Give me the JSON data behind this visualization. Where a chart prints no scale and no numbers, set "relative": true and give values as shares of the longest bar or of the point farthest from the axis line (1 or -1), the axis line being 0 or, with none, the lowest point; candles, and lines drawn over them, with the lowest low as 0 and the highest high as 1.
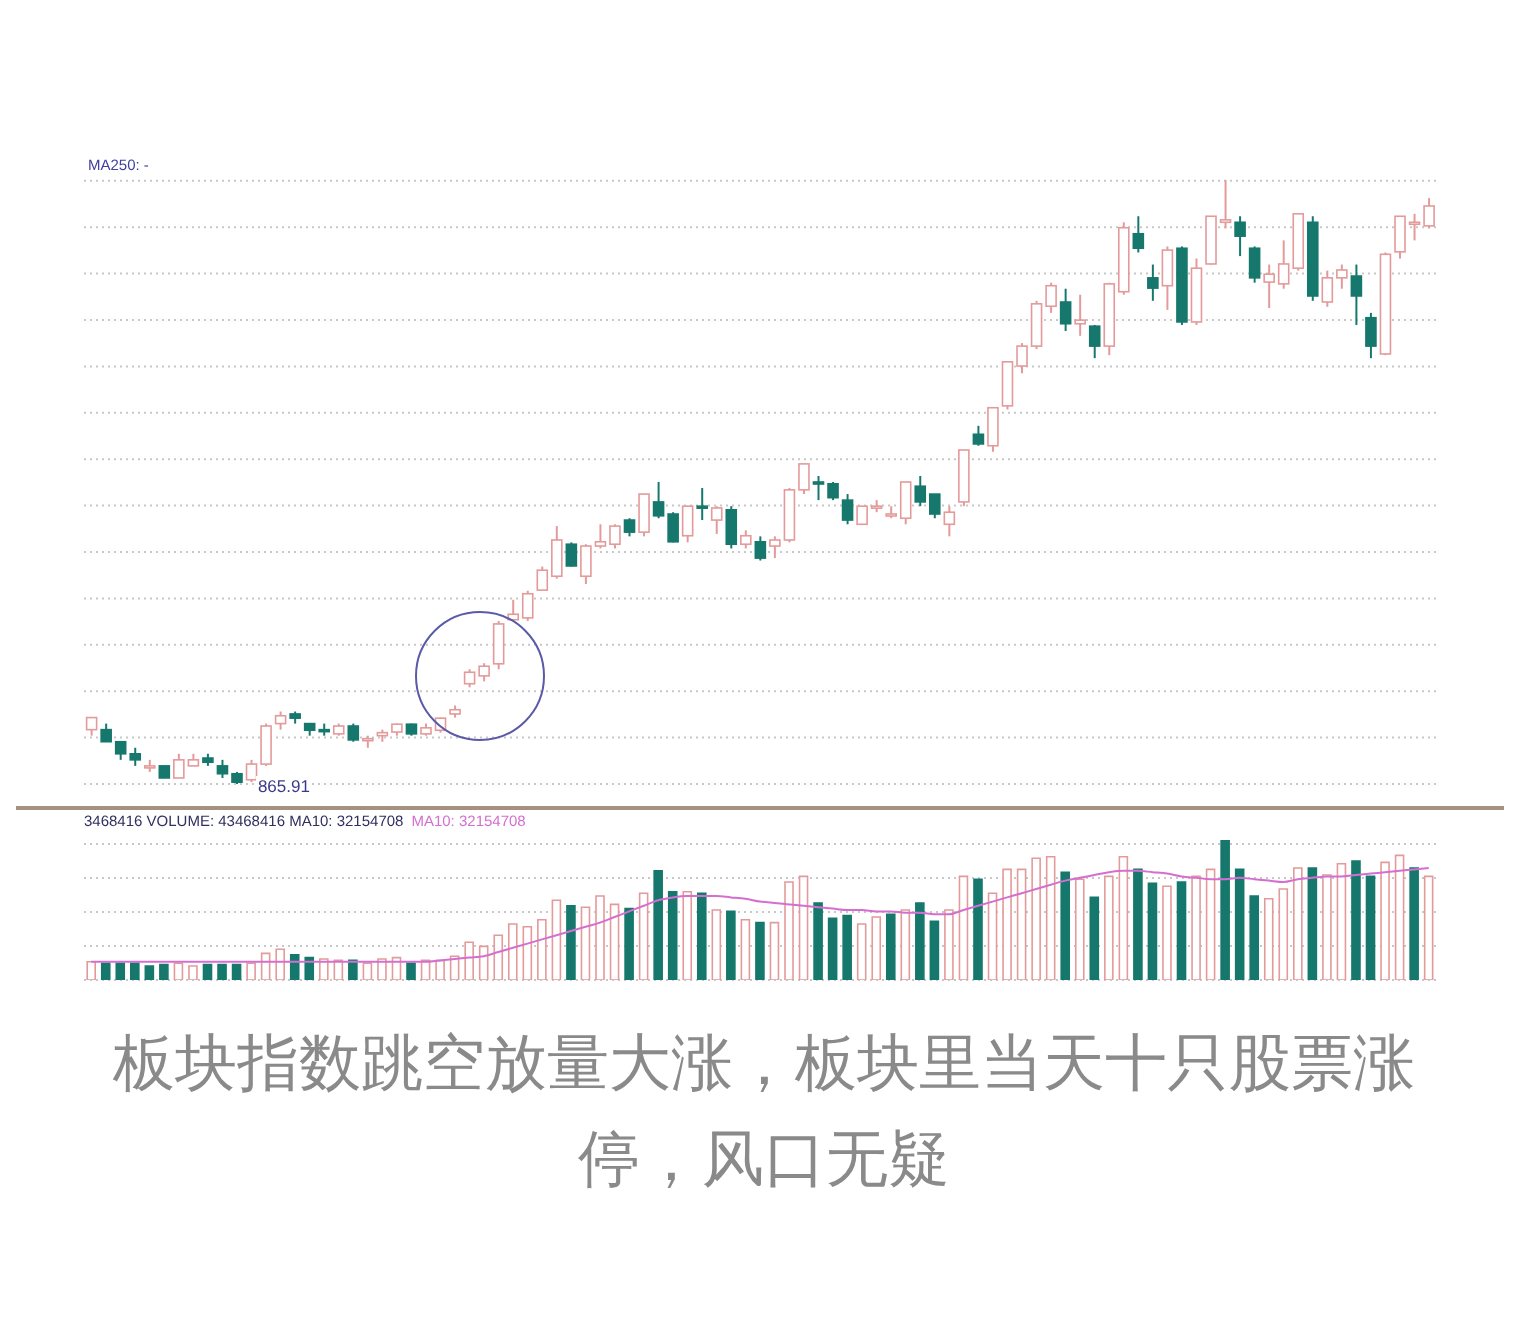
{
  "chart_data": [
    {
      "type": "candlestick",
      "relative": true,
      "grid": "y",
      "tick_labels": false,
      "colors": [
        "#e49a9a",
        "#16786d",
        "#16786d",
        "#16786d",
        "#e49a9a",
        "#16786d",
        "#e49a9a",
        "#e49a9a",
        "#16786d",
        "#16786d",
        "#16786d",
        "#e49a9a",
        "#e49a9a",
        "#e49a9a",
        "#16786d",
        "#16786d",
        "#16786d",
        "#e49a9a",
        "#16786d",
        "#e49a9a",
        "#e49a9a",
        "#e49a9a",
        "#16786d",
        "#e49a9a",
        "#e49a9a",
        "#e49a9a",
        "#e49a9a",
        "#e49a9a",
        "#e49a9a",
        "#e49a9a",
        "#e49a9a",
        "#e49a9a",
        "#e49a9a",
        "#16786d",
        "#e49a9a",
        "#e49a9a",
        "#e49a9a",
        "#16786d",
        "#e49a9a",
        "#16786d",
        "#16786d",
        "#e49a9a",
        "#16786d",
        "#e49a9a",
        "#16786d",
        "#e49a9a",
        "#16786d",
        "#e49a9a",
        "#e49a9a",
        "#e49a9a",
        "#16786d",
        "#16786d",
        "#16786d",
        "#e49a9a",
        "#e49a9a",
        "#e49a9a",
        "#e49a9a",
        "#16786d",
        "#16786d",
        "#e49a9a",
        "#e49a9a",
        "#16786d",
        "#e49a9a",
        "#e49a9a",
        "#e49a9a",
        "#e49a9a",
        "#e49a9a",
        "#16786d",
        "#e49a9a",
        "#16786d",
        "#e49a9a",
        "#e49a9a",
        "#16786d",
        "#16786d",
        "#e49a9a",
        "#16786d",
        "#e49a9a",
        "#e49a9a",
        "#e49a9a",
        "#16786d",
        "#16786d",
        "#e49a9a",
        "#e49a9a",
        "#e49a9a",
        "#16786d",
        "#e49a9a",
        "#e49a9a",
        "#16786d",
        "#16786d",
        "#e49a9a",
        "#e49a9a",
        "#e49a9a",
        "#e49a9a"
      ],
      "annotations": [
        "MA250: -",
        "865.91"
      ],
      "categories": [
        null,
        null,
        null,
        null,
        null,
        null,
        null,
        null,
        null,
        null,
        null,
        null,
        null,
        null,
        null,
        null,
        null,
        null,
        null,
        null,
        null,
        null,
        null,
        null,
        null,
        null,
        null,
        null,
        null,
        null,
        null,
        null,
        null,
        null,
        null,
        null,
        null,
        null,
        null,
        null,
        null,
        null,
        null,
        null,
        null,
        null,
        null,
        null,
        null,
        null,
        null,
        null,
        null,
        null,
        null,
        null,
        null,
        null,
        null,
        null,
        null,
        null,
        null,
        null,
        null,
        null,
        null,
        null,
        null,
        null,
        null,
        null,
        null,
        null,
        null,
        null,
        null,
        null,
        null,
        null,
        null,
        null,
        null,
        null,
        null,
        null,
        null,
        null,
        null,
        null,
        null,
        null,
        null
      ],
      "ohlc": [
        [
          0.09,
          0.11,
          0.08,
          0.11
        ],
        [
          0.09,
          0.1,
          0.07,
          0.07
        ],
        [
          0.07,
          0.07,
          0.04,
          0.05
        ],
        [
          0.05,
          0.06,
          0.03,
          0.04
        ],
        [
          0.03,
          0.04,
          0.02,
          0.03
        ],
        [
          0.03,
          0.03,
          0.01,
          0.01
        ],
        [
          0.01,
          0.05,
          0.01,
          0.04
        ],
        [
          0.03,
          0.05,
          0.03,
          0.04
        ],
        [
          0.043,
          0.05,
          0.03,
          0.036
        ],
        [
          0.03,
          0.04,
          0.01,
          0.017
        ],
        [
          0.017,
          0.02,
          0,
          0.003
        ],
        [
          0.007,
          0.04,
          0.003,
          0.033
        ],
        [
          0.033,
          0.1,
          0.03,
          0.096
        ],
        [
          0.1,
          0.12,
          0.09,
          0.113
        ],
        [
          0.116,
          0.12,
          0.1,
          0.109
        ],
        [
          0.1,
          0.1,
          0.08,
          0.089
        ],
        [
          0.09,
          0.1,
          0.08,
          0.089
        ],
        [
          0.083,
          0.1,
          0.08,
          0.096
        ],
        [
          0.096,
          0.1,
          0.07,
          0.073
        ],
        [
          0.073,
          0.08,
          0.06,
          0.075
        ],
        [
          0.08,
          0.09,
          0.07,
          0.085
        ],
        [
          0.086,
          0.1,
          0.08,
          0.099
        ],
        [
          0.099,
          0.1,
          0.08,
          0.083
        ],
        [
          0.083,
          0.1,
          0.08,
          0.093
        ],
        [
          0.089,
          0.11,
          0.085,
          0.109
        ],
        [
          0.116,
          0.13,
          0.11,
          0.123
        ],
        [
          0.166,
          0.19,
          0.16,
          0.185
        ],
        [
          0.179,
          0.2,
          0.17,
          0.195
        ],
        [
          0.199,
          0.27,
          0.19,
          0.265
        ],
        [
          0.272,
          0.305,
          0.27,
          0.281
        ],
        [
          0.275,
          0.32,
          0.27,
          0.315
        ],
        [
          0.321,
          0.36,
          0.32,
          0.354
        ],
        [
          0.344,
          0.427,
          0.34,
          0.404
        ],
        [
          0.397,
          0.4,
          0.36,
          0.361
        ],
        [
          0.344,
          0.397,
          0.331,
          0.394
        ],
        [
          0.394,
          0.43,
          0.39,
          0.401
        ],
        [
          0.397,
          0.43,
          0.39,
          0.427
        ],
        [
          0.437,
          0.44,
          0.41,
          0.417
        ],
        [
          0.417,
          0.48,
          0.41,
          0.48
        ],
        [
          0.467,
          0.5,
          0.44,
          0.444
        ],
        [
          0.447,
          0.45,
          0.4,
          0.401
        ],
        [
          0.411,
          0.46,
          0.4,
          0.46
        ],
        [
          0.46,
          0.49,
          0.437,
          0.457
        ],
        [
          0.437,
          0.46,
          0.414,
          0.457
        ],
        [
          0.454,
          0.46,
          0.39,
          0.397
        ],
        [
          0.397,
          0.42,
          0.39,
          0.411
        ],
        [
          0.401,
          0.41,
          0.37,
          0.374
        ],
        [
          0.394,
          0.41,
          0.374,
          0.404
        ],
        [
          0.404,
          0.49,
          0.4,
          0.487
        ],
        [
          0.487,
          0.53,
          0.48,
          0.53
        ],
        [
          0.5,
          0.51,
          0.47,
          0.497
        ],
        [
          0.497,
          0.5,
          0.47,
          0.474
        ],
        [
          0.47,
          0.48,
          0.43,
          0.437
        ],
        [
          0.43,
          0.46,
          0.43,
          0.46
        ],
        [
          0.457,
          0.47,
          0.45,
          0.46
        ],
        [
          0.447,
          0.46,
          0.44,
          0.447
        ],
        [
          0.44,
          0.5,
          0.43,
          0.5
        ],
        [
          0.493,
          0.51,
          0.46,
          0.467
        ],
        [
          0.48,
          0.48,
          0.44,
          0.447
        ],
        [
          0.43,
          0.46,
          0.41,
          0.45
        ],
        [
          0.467,
          0.553,
          0.46,
          0.553
        ],
        [
          0.579,
          0.593,
          0.56,
          0.563
        ],
        [
          0.56,
          0.623,
          0.55,
          0.623
        ],
        [
          0.626,
          0.7,
          0.62,
          0.699
        ],
        [
          0.692,
          0.73,
          0.68,
          0.725
        ],
        [
          0.725,
          0.8,
          0.72,
          0.795
        ],
        [
          0.791,
          0.83,
          0.78,
          0.825
        ],
        [
          0.798,
          0.82,
          0.75,
          0.762
        ],
        [
          0.762,
          0.81,
          0.742,
          0.768
        ],
        [
          0.758,
          0.76,
          0.705,
          0.725
        ],
        [
          0.725,
          0.83,
          0.71,
          0.828
        ],
        [
          0.815,
          0.93,
          0.81,
          0.921
        ],
        [
          0.911,
          0.94,
          0.88,
          0.887
        ],
        [
          0.838,
          0.86,
          0.8,
          0.821
        ],
        [
          0.825,
          0.89,
          0.785,
          0.884
        ],
        [
          0.887,
          0.89,
          0.76,
          0.765
        ],
        [
          0.765,
          0.87,
          0.76,
          0.854
        ],
        [
          0.861,
          0.94,
          0.86,
          0.94
        ],
        [
          0.93,
          1,
          0.92,
          0.934
        ],
        [
          0.93,
          0.94,
          0.874,
          0.907
        ],
        [
          0.887,
          0.89,
          0.83,
          0.838
        ],
        [
          0.831,
          0.86,
          0.788,
          0.844
        ],
        [
          0.828,
          0.9,
          0.82,
          0.861
        ],
        [
          0.854,
          0.944,
          0.85,
          0.944
        ],
        [
          0.93,
          0.94,
          0.8,
          0.808
        ],
        [
          0.798,
          0.85,
          0.79,
          0.838
        ],
        [
          0.838,
          0.86,
          0.82,
          0.851
        ],
        [
          0.841,
          0.86,
          0.76,
          0.808
        ],
        [
          0.772,
          0.78,
          0.705,
          0.725
        ],
        [
          0.712,
          0.88,
          0.71,
          0.877
        ],
        [
          0.881,
          0.94,
          0.87,
          0.94
        ],
        [
          0.927,
          0.944,
          0.9,
          0.93
        ],
        [
          0.924,
          0.97,
          0.92,
          0.957
        ]
      ]
    },
    {
      "type": "bar",
      "relative": true,
      "grid": "y",
      "tick_labels": false,
      "legend": "top left",
      "title": "3468416 VOLUME: 43468416 MA10: 32154708",
      "annotations": [
        "板块指数跳空放量大涨，板块里当天十只股票涨停，风口无疑"
      ],
      "categories": [
        null,
        null,
        null,
        null,
        null,
        null,
        null,
        null,
        null,
        null,
        null,
        null,
        null,
        null,
        null,
        null,
        null,
        null,
        null,
        null,
        null,
        null,
        null,
        null,
        null,
        null,
        null,
        null,
        null,
        null,
        null,
        null,
        null,
        null,
        null,
        null,
        null,
        null,
        null,
        null,
        null,
        null,
        null,
        null,
        null,
        null,
        null,
        null,
        null,
        null,
        null,
        null,
        null,
        null,
        null,
        null,
        null,
        null,
        null,
        null,
        null,
        null,
        null,
        null,
        null,
        null,
        null,
        null,
        null,
        null,
        null,
        null,
        null,
        null,
        null,
        null,
        null,
        null,
        null,
        null,
        null,
        null,
        null,
        null,
        null,
        null,
        null,
        null,
        null,
        null,
        null,
        null,
        null
      ],
      "series": [
        {
          "type": "bar",
          "values": [
            0.13,
            0.12,
            0.12,
            0.12,
            0.1,
            0.11,
            0.12,
            0.1,
            0.11,
            0.11,
            0.11,
            0.12,
            0.19,
            0.22,
            0.18,
            0.16,
            0.15,
            0.14,
            0.14,
            0.12,
            0.15,
            0.16,
            0.12,
            0.14,
            0.14,
            0.17,
            0.27,
            0.24,
            0.32,
            0.4,
            0.38,
            0.43,
            0.57,
            0.53,
            0.52,
            0.6,
            0.54,
            0.51,
            0.62,
            0.78,
            0.63,
            0.63,
            0.62,
            0.5,
            0.49,
            0.43,
            0.41,
            0.41,
            0.7,
            0.74,
            0.55,
            0.44,
            0.46,
            0.4,
            0.45,
            0.47,
            0.5,
            0.55,
            0.42,
            0.5,
            0.74,
            0.72,
            0.62,
            0.79,
            0.79,
            0.87,
            0.88,
            0.77,
            0.72,
            0.59,
            0.74,
            0.88,
            0.79,
            0.69,
            0.67,
            0.7,
            0.74,
            0.79,
            1.0,
            0.79,
            0.6,
            0.58,
            0.65,
            0.8,
            0.8,
            0.75,
            0.83,
            0.85,
            0.74,
            0.84,
            0.89,
            0.8,
            0.74
          ],
          "colors": [
            "#e49a9a",
            "#16786d",
            "#16786d",
            "#16786d",
            "#16786d",
            "#16786d",
            "#e49a9a",
            "#e49a9a",
            "#16786d",
            "#16786d",
            "#16786d",
            "#e49a9a",
            "#e49a9a",
            "#e49a9a",
            "#16786d",
            "#16786d",
            "#e49a9a",
            "#e49a9a",
            "#16786d",
            "#e49a9a",
            "#e49a9a",
            "#e49a9a",
            "#16786d",
            "#e49a9a",
            "#e49a9a",
            "#e49a9a",
            "#e49a9a",
            "#e49a9a",
            "#e49a9a",
            "#e49a9a",
            "#e49a9a",
            "#e49a9a",
            "#e49a9a",
            "#16786d",
            "#e49a9a",
            "#e49a9a",
            "#e49a9a",
            "#16786d",
            "#e49a9a",
            "#16786d",
            "#16786d",
            "#e49a9a",
            "#16786d",
            "#e49a9a",
            "#16786d",
            "#e49a9a",
            "#16786d",
            "#e49a9a",
            "#e49a9a",
            "#e49a9a",
            "#16786d",
            "#16786d",
            "#16786d",
            "#e49a9a",
            "#e49a9a",
            "#16786d",
            "#e49a9a",
            "#16786d",
            "#16786d",
            "#e49a9a",
            "#e49a9a",
            "#16786d",
            "#e49a9a",
            "#e49a9a",
            "#e49a9a",
            "#e49a9a",
            "#e49a9a",
            "#16786d",
            "#e49a9a",
            "#16786d",
            "#e49a9a",
            "#e49a9a",
            "#16786d",
            "#16786d",
            "#e49a9a",
            "#16786d",
            "#e49a9a",
            "#e49a9a",
            "#16786d",
            "#16786d",
            "#16786d",
            "#e49a9a",
            "#e49a9a",
            "#e49a9a",
            "#16786d",
            "#e49a9a",
            "#e49a9a",
            "#16786d",
            "#16786d",
            "#e49a9a",
            "#e49a9a",
            "#16786d",
            "#e49a9a"
          ]
        },
        {
          "type": "line",
          "name": "MA10: 32154708",
          "color": "#d46fd0",
          "values": [
            0.13,
            0.13,
            0.13,
            0.13,
            0.13,
            0.13,
            0.13,
            0.13,
            0.13,
            0.13,
            0.13,
            0.13,
            0.13,
            0.13,
            0.13,
            0.13,
            0.13,
            0.13,
            0.13,
            0.13,
            0.13,
            0.13,
            0.13,
            0.13,
            0.14,
            0.15,
            0.16,
            0.17,
            0.2,
            0.23,
            0.26,
            0.29,
            0.32,
            0.35,
            0.38,
            0.41,
            0.45,
            0.49,
            0.53,
            0.57,
            0.59,
            0.6,
            0.6,
            0.6,
            0.59,
            0.58,
            0.56,
            0.55,
            0.54,
            0.53,
            0.52,
            0.51,
            0.5,
            0.5,
            0.49,
            0.49,
            0.48,
            0.48,
            0.47,
            0.47,
            0.5,
            0.53,
            0.56,
            0.59,
            0.62,
            0.65,
            0.68,
            0.71,
            0.73,
            0.75,
            0.77,
            0.78,
            0.78,
            0.77,
            0.76,
            0.74,
            0.73,
            0.72,
            0.72,
            0.73,
            0.72,
            0.71,
            0.7,
            0.72,
            0.73,
            0.74,
            0.74,
            0.75,
            0.76,
            0.77,
            0.78,
            0.79,
            0.8
          ]
        }
      ]
    }
  ]
}
